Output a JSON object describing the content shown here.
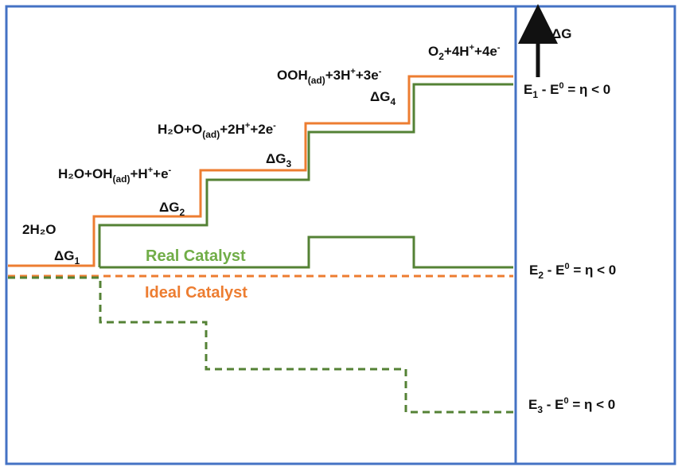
{
  "colors": {
    "frame": "#4472c4",
    "ideal": "#ed7d31",
    "real": "#548235",
    "text": "#111111"
  },
  "axis": {
    "label": "ΔG"
  },
  "states": {
    "s0": "2H₂O",
    "s1": {
      "a": "H₂O+OH",
      "sub": "(ad)",
      "b": "+H",
      "sup1": "+",
      "c": "+e",
      "sup2": "-"
    },
    "s2": {
      "a": "H₂O+O",
      "sub": "(ad)",
      "b": "+2H",
      "sup1": "+",
      "c": "+2e",
      "sup2": "-"
    },
    "s3": {
      "a": "OOH",
      "sub": "(ad)",
      "b": "+3H",
      "sup1": "+",
      "c": "+3e",
      "sup2": "-"
    },
    "s4": {
      "a": "O",
      "sub": "2",
      "b": "+4H",
      "sup1": "+",
      "c": "+4e",
      "sup2": "-"
    }
  },
  "steps": [
    {
      "base": "ΔG",
      "sub": "1"
    },
    {
      "base": "ΔG",
      "sub": "2"
    },
    {
      "base": "ΔG",
      "sub": "3"
    },
    {
      "base": "ΔG",
      "sub": "4"
    }
  ],
  "legend": {
    "real": "Real Catalyst",
    "ideal": "Ideal Catalyst"
  },
  "equations": [
    {
      "e": "E",
      "sub": "1",
      "mid": " - E",
      "sup": "0",
      "rest": " = η  < 0"
    },
    {
      "e": "E",
      "sub": "2",
      "mid": " - E",
      "sup": "0",
      "rest": " = η  < 0"
    },
    {
      "e": "E",
      "sub": "3",
      "mid": " - E",
      "sup": "0",
      "rest": " = η  < 0"
    }
  ]
}
